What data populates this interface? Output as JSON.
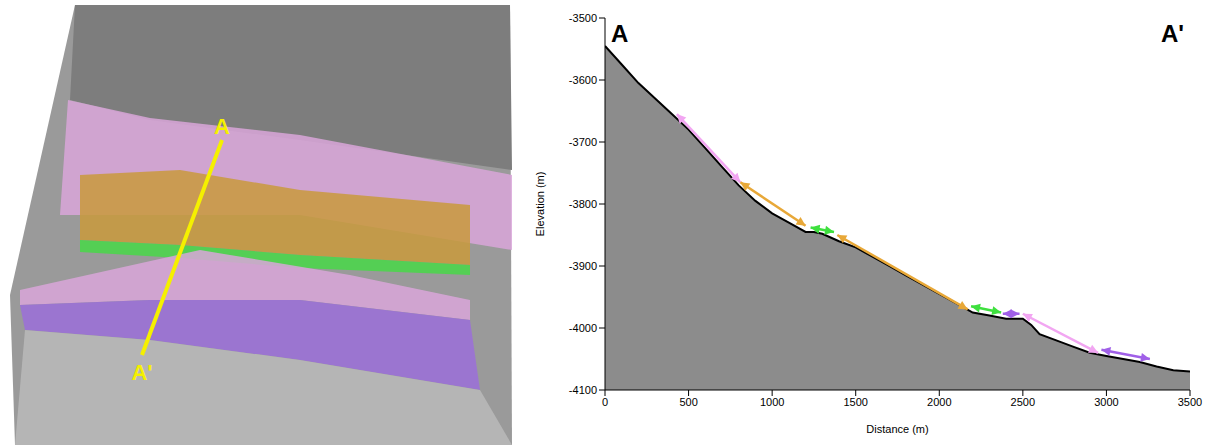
{
  "map": {
    "line_labels": [
      "A",
      "A'"
    ]
  },
  "chart_data": {
    "type": "area",
    "xlabel": "Distance (m)",
    "ylabel": "Elevation (m)",
    "annotations": [
      "A",
      "A'"
    ],
    "color": "#8c8c8c",
    "x": [
      0,
      100,
      200,
      300,
      400,
      500,
      600,
      700,
      800,
      900,
      1000,
      1100,
      1200,
      1250,
      1300,
      1400,
      1500,
      1600,
      1700,
      1800,
      1900,
      2000,
      2100,
      2200,
      2300,
      2400,
      2500,
      2550,
      2600,
      2700,
      2800,
      2900,
      3000,
      3100,
      3200,
      3300,
      3400,
      3500
    ],
    "values": [
      -3545,
      -3575,
      -3605,
      -3630,
      -3655,
      -3680,
      -3710,
      -3740,
      -3770,
      -3795,
      -3815,
      -3830,
      -3845,
      -3845,
      -3848,
      -3860,
      -3870,
      -3885,
      -3900,
      -3915,
      -3930,
      -3945,
      -3960,
      -3975,
      -3980,
      -3985,
      -3985,
      -3995,
      -4010,
      -4020,
      -4030,
      -4040,
      -4045,
      -4050,
      -4055,
      -4062,
      -4068,
      -4070
    ],
    "xlim": [
      0,
      3500
    ],
    "xticks": [
      0,
      500,
      1000,
      1500,
      2000,
      2500,
      3000,
      3500
    ],
    "ylim": [
      -4100,
      -3500
    ],
    "yticks": [
      -4100,
      -4000,
      -3900,
      -3800,
      -3700,
      -3600,
      -3500
    ],
    "arrows": [
      {
        "x": [
          430,
          810
        ],
        "y": [
          -3655,
          -3765
        ],
        "color": "#f2a6f2"
      },
      {
        "x": [
          810,
          1200
        ],
        "y": [
          -3765,
          -3835
        ],
        "color": "#e8a838"
      },
      {
        "x": [
          1230,
          1370
        ],
        "y": [
          -3838,
          -3845
        ],
        "color": "#3ee03e"
      },
      {
        "x": [
          1390,
          2170
        ],
        "y": [
          -3850,
          -3970
        ],
        "color": "#e8a838"
      },
      {
        "x": [
          2190,
          2370
        ],
        "y": [
          -3965,
          -3975
        ],
        "color": "#3ee03e"
      },
      {
        "x": [
          2380,
          2480
        ],
        "y": [
          -3977,
          -3977
        ],
        "color": "#a060e8"
      },
      {
        "x": [
          2500,
          2950
        ],
        "y": [
          -3977,
          -4040
        ],
        "color": "#f2a6f2"
      },
      {
        "x": [
          2970,
          3260
        ],
        "y": [
          -4035,
          -4050
        ],
        "color": "#a060e8"
      }
    ]
  }
}
